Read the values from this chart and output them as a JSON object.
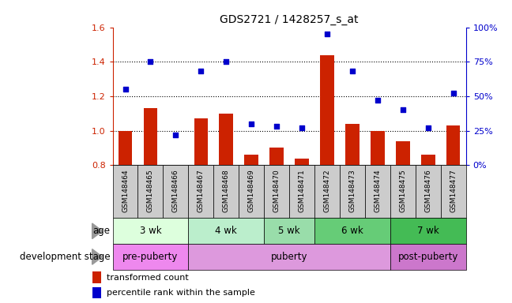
{
  "title": "GDS2721 / 1428257_s_at",
  "samples": [
    "GSM148464",
    "GSM148465",
    "GSM148466",
    "GSM148467",
    "GSM148468",
    "GSM148469",
    "GSM148470",
    "GSM148471",
    "GSM148472",
    "GSM148473",
    "GSM148474",
    "GSM148475",
    "GSM148476",
    "GSM148477"
  ],
  "transformed_count": [
    1.0,
    1.13,
    0.8,
    1.07,
    1.1,
    0.86,
    0.9,
    0.84,
    1.44,
    1.04,
    1.0,
    0.94,
    0.86,
    1.03
  ],
  "percentile_rank": [
    55,
    75,
    22,
    68,
    75,
    30,
    28,
    27,
    95,
    68,
    47,
    40,
    27,
    52
  ],
  "bar_color": "#cc2200",
  "dot_color": "#0000cc",
  "bar_bottom": 0.8,
  "ylim_left": [
    0.8,
    1.6
  ],
  "ylim_right": [
    0,
    100
  ],
  "yticks_left": [
    0.8,
    1.0,
    1.2,
    1.4,
    1.6
  ],
  "yticks_right": [
    0,
    25,
    50,
    75,
    100
  ],
  "ytick_labels_right": [
    "0%",
    "25%",
    "50%",
    "75%",
    "100%"
  ],
  "hlines": [
    1.0,
    1.2,
    1.4
  ],
  "age_groups": [
    {
      "label": "3 wk",
      "start": 0,
      "end": 3
    },
    {
      "label": "4 wk",
      "start": 3,
      "end": 6
    },
    {
      "label": "5 wk",
      "start": 6,
      "end": 8
    },
    {
      "label": "6 wk",
      "start": 8,
      "end": 11
    },
    {
      "label": "7 wk",
      "start": 11,
      "end": 14
    }
  ],
  "age_colors": [
    "#ddffdd",
    "#bbeecc",
    "#99ddaa",
    "#66cc77",
    "#44bb55"
  ],
  "dev_groups": [
    {
      "label": "pre-puberty",
      "start": 0,
      "end": 3
    },
    {
      "label": "puberty",
      "start": 3,
      "end": 11
    },
    {
      "label": "post-puberty",
      "start": 11,
      "end": 14
    }
  ],
  "dev_colors": [
    "#ee88ee",
    "#dd99dd",
    "#cc77cc"
  ],
  "age_label": "age",
  "dev_label": "development stage",
  "legend1_label": "transformed count",
  "legend2_label": "percentile rank within the sample",
  "sample_bg": "#cccccc",
  "sample_border": "#888888"
}
